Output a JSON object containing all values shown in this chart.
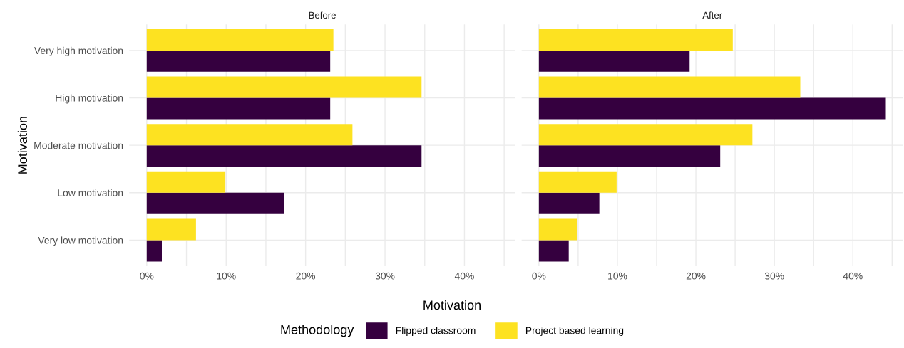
{
  "chart_data": [
    {
      "type": "bar",
      "orientation": "horizontal",
      "title": "Before",
      "xlabel": "Motivation",
      "ylabel": "Motivation",
      "legend_title": "Methodology",
      "legend": "bottom",
      "grid": true,
      "categories": [
        "Very high motivation",
        "High motivation",
        "Moderate motivation",
        "Low motivation",
        "Very low motivation"
      ],
      "series": [
        {
          "name": "Flipped classroom",
          "color": "#35003f",
          "values": [
            23.1,
            23.1,
            34.6,
            17.3,
            1.9
          ]
        },
        {
          "name": "Project based learning",
          "color": "#fde221",
          "values": [
            23.5,
            34.6,
            25.9,
            9.9,
            6.2
          ]
        }
      ],
      "xlim": [
        -2.2,
        46.4
      ],
      "xticks": [
        {
          "value": 0,
          "label": "0%"
        },
        {
          "value": 5,
          "label": null
        },
        {
          "value": 10,
          "label": "10%"
        },
        {
          "value": 15,
          "label": null
        },
        {
          "value": 20,
          "label": "20%"
        },
        {
          "value": 25,
          "label": null
        },
        {
          "value": 30,
          "label": "30%"
        },
        {
          "value": 35,
          "label": null
        },
        {
          "value": 40,
          "label": "40%"
        },
        {
          "value": 45,
          "label": null
        }
      ]
    },
    {
      "type": "bar",
      "orientation": "horizontal",
      "title": "After",
      "grid": true,
      "tick_labels": "x",
      "series": [
        {
          "color": "#35003f",
          "values": [
            19.2,
            44.2,
            23.1,
            7.7,
            3.8
          ]
        },
        {
          "color": "#fde221",
          "values": [
            24.7,
            33.3,
            27.2,
            9.9,
            4.9
          ]
        }
      ],
      "xlim": [
        -2.2,
        46.4
      ],
      "xticks": [
        {
          "value": 0,
          "label": "0%"
        },
        {
          "value": 5,
          "label": null
        },
        {
          "value": 10,
          "label": "10%"
        },
        {
          "value": 15,
          "label": null
        },
        {
          "value": 20,
          "label": "20%"
        },
        {
          "value": 25,
          "label": null
        },
        {
          "value": 30,
          "label": "30%"
        },
        {
          "value": 35,
          "label": null
        },
        {
          "value": 40,
          "label": "40%"
        },
        {
          "value": 45,
          "label": null
        }
      ]
    }
  ]
}
